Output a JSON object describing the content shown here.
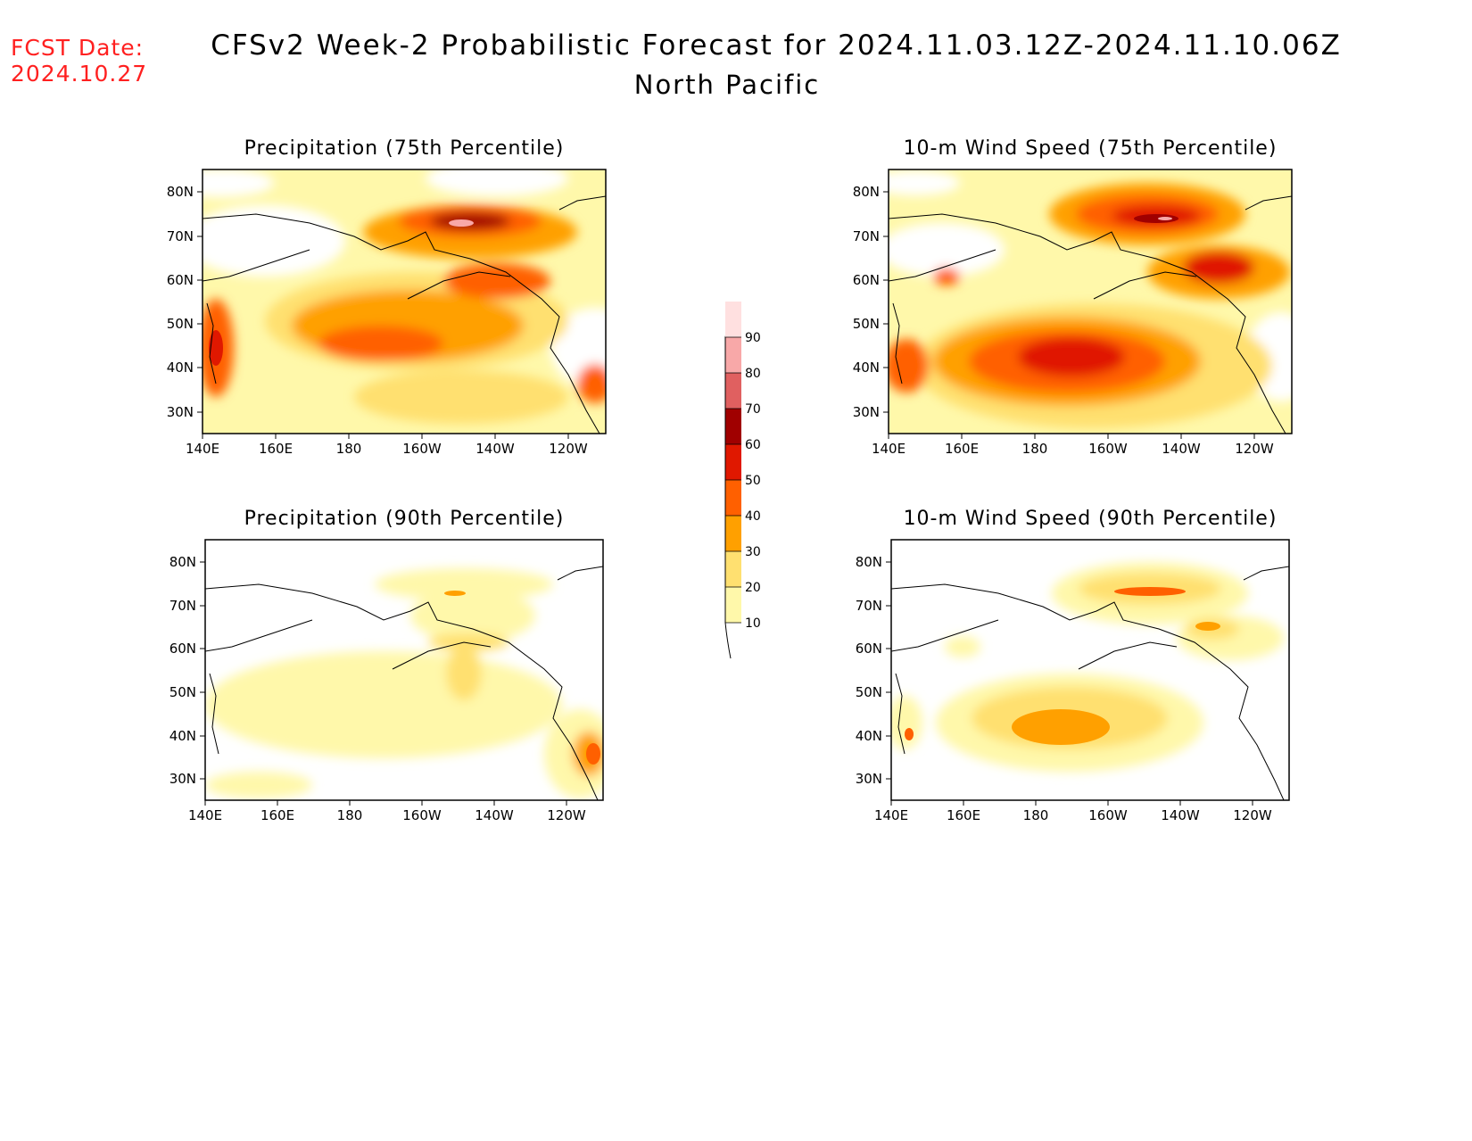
{
  "forecast_date": {
    "label": "FCST Date:",
    "value": "2024.10.27"
  },
  "header": {
    "title": "CFSv2 Week-2 Probabilistic Forecast for 2024.11.03.12Z-2024.11.10.06Z",
    "subtitle": "North Pacific"
  },
  "axes": {
    "lon_ticks": [
      "140E",
      "160E",
      "180",
      "160W",
      "140W",
      "120W"
    ],
    "lat_ticks": [
      "80N",
      "70N",
      "60N",
      "50N",
      "40N",
      "30N"
    ]
  },
  "colorbar": {
    "labels": [
      "10",
      "20",
      "30",
      "40",
      "50",
      "60",
      "70",
      "80",
      "90"
    ],
    "colors": [
      "#fff8aa",
      "#ffe070",
      "#ffa000",
      "#ff6000",
      "#e01800",
      "#a00000",
      "#e06060",
      "#f8a8a8",
      "#ffe0e0"
    ]
  },
  "panels": [
    {
      "id": "precip-75",
      "title": "Precipitation (75th Percentile)"
    },
    {
      "id": "wind-75",
      "title": "10-m Wind Speed (75th Percentile)"
    },
    {
      "id": "precip-90",
      "title": "Precipitation (90th Percentile)"
    },
    {
      "id": "wind-90",
      "title": "10-m Wind Speed (90th Percentile)"
    }
  ]
}
